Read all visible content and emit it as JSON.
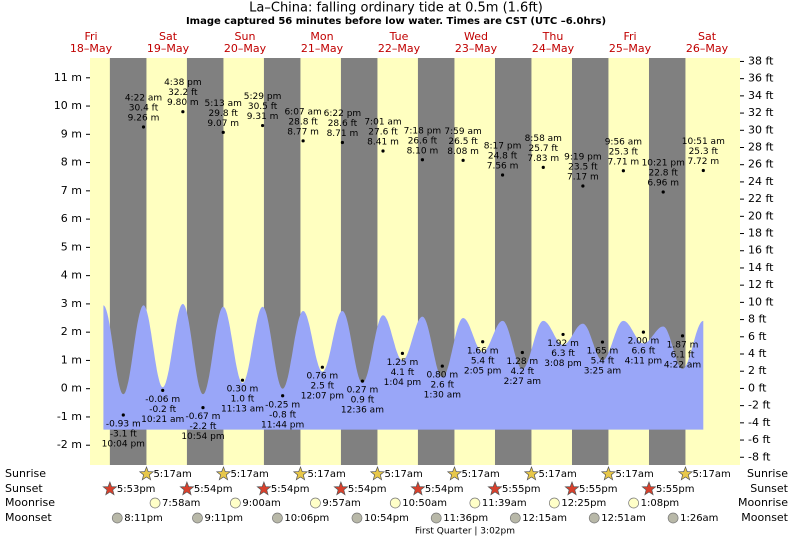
{
  "chart_data": {
    "type": "tide",
    "title": "La–China: falling  ordinary tide at 0.5m (1.6ft)",
    "subtitle": "Image captured 56 minutes before low water. Times are CST (UTC –6.0hrs)",
    "ylim": [
      -2.7,
      11.7
    ],
    "yticks": [
      {
        "value": -2,
        "label": "-2 m"
      },
      {
        "value": -1,
        "label": "-1 m"
      },
      {
        "value": 0,
        "label": "0 m"
      },
      {
        "value": 1,
        "label": "1 m"
      },
      {
        "value": 2,
        "label": "2 m"
      },
      {
        "value": 3,
        "label": "3 m"
      },
      {
        "value": 4,
        "label": "4 m"
      },
      {
        "value": 5,
        "label": "5 m"
      },
      {
        "value": 6,
        "label": "6 m"
      },
      {
        "value": 7,
        "label": "7 m"
      },
      {
        "value": 8,
        "label": "8 m"
      },
      {
        "value": 9,
        "label": "9 m"
      },
      {
        "value": 10,
        "label": "10 m"
      },
      {
        "value": 11,
        "label": "11 m"
      }
    ],
    "y2lim": [
      -8.9,
      38.4
    ],
    "y2ticks": [
      {
        "value": -8,
        "label": "-8 ft"
      },
      {
        "value": -6,
        "label": "-6 ft"
      },
      {
        "value": -4,
        "label": "-4 ft"
      },
      {
        "value": -2,
        "label": "-2 ft"
      },
      {
        "value": 0,
        "label": "0 ft"
      },
      {
        "value": 2,
        "label": "2 ft"
      },
      {
        "value": 4,
        "label": "4 ft"
      },
      {
        "value": 6,
        "label": "6 ft"
      },
      {
        "value": 8,
        "label": "8 ft"
      },
      {
        "value": 10,
        "label": "10 ft"
      },
      {
        "value": 12,
        "label": "12 ft"
      },
      {
        "value": 14,
        "label": "14 ft"
      },
      {
        "value": 16,
        "label": "16 ft"
      },
      {
        "value": 18,
        "label": "18 ft"
      },
      {
        "value": 20,
        "label": "20 ft"
      },
      {
        "value": 22,
        "label": "22 ft"
      },
      {
        "value": 24,
        "label": "24 ft"
      },
      {
        "value": 26,
        "label": "26 ft"
      },
      {
        "value": 28,
        "label": "28 ft"
      },
      {
        "value": 30,
        "label": "30 ft"
      },
      {
        "value": 32,
        "label": "32 ft"
      },
      {
        "value": 34,
        "label": "34 ft"
      },
      {
        "value": 36,
        "label": "36 ft"
      },
      {
        "value": 38,
        "label": "38 ft"
      }
    ],
    "area_floor": -1.45,
    "colors": {
      "day": "#ffffc0",
      "night": "#808080",
      "tide": "#99a6f8",
      "date": "#c00000"
    },
    "row_labels": {
      "sunrise": "Sunrise",
      "sunset": "Sunset",
      "moonrise": "Moonrise",
      "moonset": "Moonset"
    },
    "moon_phase": "First Quarter | 3:02pm",
    "days": [
      {
        "day": "Fri",
        "date": "18–May",
        "sunset": "5:53pm",
        "moonset": "8:11pm",
        "tides": [
          {
            "time": "10:04 pm",
            "m": -0.93,
            "m_label": "-0.93 m",
            "ft_label": "-3.1 ft",
            "level": -0.2
          }
        ]
      },
      {
        "day": "Sat",
        "date": "19–May",
        "sunrise": "5:17am",
        "sunset": "5:54pm",
        "moonrise": "7:58am",
        "moonset": "9:11pm",
        "tides": [
          {
            "time": "4:22 am",
            "m": 9.26,
            "m_label": "9.26 m",
            "ft_label": "30.4 ft",
            "level": 2.95
          },
          {
            "time": "10:21 am",
            "m": -0.06,
            "m_label": "-0.06 m",
            "ft_label": "-0.2 ft",
            "level": 0.05
          },
          {
            "time": "4:38 pm",
            "m": 9.8,
            "m_label": "9.80 m",
            "ft_label": "32.2 ft",
            "level": 3.0
          },
          {
            "time": "10:54 pm",
            "m": -0.67,
            "m_label": "-0.67 m",
            "ft_label": "-2.2 ft",
            "level": -0.2
          }
        ]
      },
      {
        "day": "Sun",
        "date": "20–May",
        "sunrise": "5:17am",
        "sunset": "5:54pm",
        "moonrise": "9:00am",
        "moonset": "10:06pm",
        "tides": [
          {
            "time": "5:13 am",
            "m": 9.07,
            "m_label": "9.07 m",
            "ft_label": "29.8 ft",
            "level": 2.9
          },
          {
            "time": "11:13 am",
            "m": 0.3,
            "m_label": "0.30 m",
            "ft_label": "1.0 ft",
            "level": 0.2
          },
          {
            "time": "5:29 pm",
            "m": 9.31,
            "m_label": "9.31 m",
            "ft_label": "30.5 ft",
            "level": 2.9
          },
          {
            "time": "11:44 pm",
            "m": -0.25,
            "m_label": "-0.25 m",
            "ft_label": "-0.8 ft",
            "level": 0
          }
        ]
      },
      {
        "day": "Mon",
        "date": "21–May",
        "sunrise": "5:17am",
        "sunset": "5:54pm",
        "moonrise": "9:57am",
        "moonset": "10:54pm",
        "tides": [
          {
            "time": "6:07 am",
            "m": 8.77,
            "m_label": "8.77 m",
            "ft_label": "28.8 ft",
            "level": 2.75
          },
          {
            "time": "12:07 pm",
            "m": 0.76,
            "m_label": "0.76 m",
            "ft_label": "2.5 ft",
            "level": 0.6
          },
          {
            "time": "6:22 pm",
            "m": 8.71,
            "m_label": "8.71 m",
            "ft_label": "28.6 ft",
            "level": 2.75
          }
        ]
      },
      {
        "day": "Tue",
        "date": "22–May",
        "sunrise": "5:17am",
        "sunset": "5:54pm",
        "moonrise": "10:50am",
        "moonset": "11:36pm",
        "tides": [
          {
            "time": "12:36 am",
            "m": 0.27,
            "m_label": "0.27 m",
            "ft_label": "0.9 ft",
            "level": 0.2
          },
          {
            "time": "7:01 am",
            "m": 8.41,
            "m_label": "8.41 m",
            "ft_label": "27.6 ft",
            "level": 2.6
          },
          {
            "time": "1:04 pm",
            "m": 1.25,
            "m_label": "1.25 m",
            "ft_label": "4.1 ft",
            "level": 1.0
          },
          {
            "time": "7:18 pm",
            "m": 8.1,
            "m_label": "8.10 m",
            "ft_label": "26.6 ft",
            "level": 2.55
          }
        ]
      },
      {
        "day": "Wed",
        "date": "23–May",
        "sunrise": "5:17am",
        "sunset": "5:55pm",
        "moonrise": "11:39am",
        "tides": [
          {
            "time": "1:30 am",
            "m": 0.8,
            "m_label": "0.80 m",
            "ft_label": "2.6 ft",
            "level": 0.4
          },
          {
            "time": "7:59 am",
            "m": 8.08,
            "m_label": "8.08 m",
            "ft_label": "26.5 ft",
            "level": 2.5
          },
          {
            "time": "2:05 pm",
            "m": 1.66,
            "m_label": "1.66 m",
            "ft_label": "5.4 ft",
            "level": 1.3
          },
          {
            "time": "8:17 pm",
            "m": 7.56,
            "m_label": "7.56 m",
            "ft_label": "24.8 ft",
            "level": 2.4
          }
        ]
      },
      {
        "day": "Thu",
        "date": "24–May",
        "sunrise": "5:17am",
        "sunset": "5:55pm",
        "moonrise": "12:25pm",
        "moonset": "12:15am",
        "tides": [
          {
            "time": "2:27 am",
            "m": 1.28,
            "m_label": "1.28 m",
            "ft_label": "4.2 ft",
            "level": 0.7
          },
          {
            "time": "8:58 am",
            "m": 7.83,
            "m_label": "7.83 m",
            "ft_label": "25.7 ft",
            "level": 2.4
          },
          {
            "time": "3:08 pm",
            "m": 1.92,
            "m_label": "1.92 m",
            "ft_label": "6.3 ft",
            "level": 1.55
          },
          {
            "time": "9:19 pm",
            "m": 7.17,
            "m_label": "7.17 m",
            "ft_label": "23.5 ft",
            "level": 2.3
          }
        ]
      },
      {
        "day": "Fri",
        "date": "25–May",
        "sunrise": "5:17am",
        "sunset": "5:55pm",
        "moonrise": "1:08pm",
        "moonset": "12:51am",
        "tides": [
          {
            "time": "3:25 am",
            "m": 1.65,
            "m_label": "1.65 m",
            "ft_label": "5.4 ft",
            "level": 1.0
          },
          {
            "time": "9:56 am",
            "m": 7.71,
            "m_label": "7.71 m",
            "ft_label": "25.3 ft",
            "level": 2.4
          },
          {
            "time": "4:11 pm",
            "m": 2.0,
            "m_label": "2.00 m",
            "ft_label": "6.6 ft",
            "level": 1.6
          },
          {
            "time": "10:21 pm",
            "m": 6.96,
            "m_label": "6.96 m",
            "ft_label": "22.8 ft",
            "level": 2.2
          }
        ]
      },
      {
        "day": "Sat",
        "date": "26–May",
        "sunrise": "5:17am",
        "moonset": "1:26am",
        "tides": [
          {
            "time": "4:22 am",
            "m": 1.87,
            "m_label": "1.87 m",
            "ft_label": "6.1 ft",
            "level": 0.7
          },
          {
            "time": "10:51 am",
            "m": 7.72,
            "m_label": "7.72 m",
            "ft_label": "25.3 ft",
            "level": 2.4
          }
        ]
      }
    ]
  }
}
